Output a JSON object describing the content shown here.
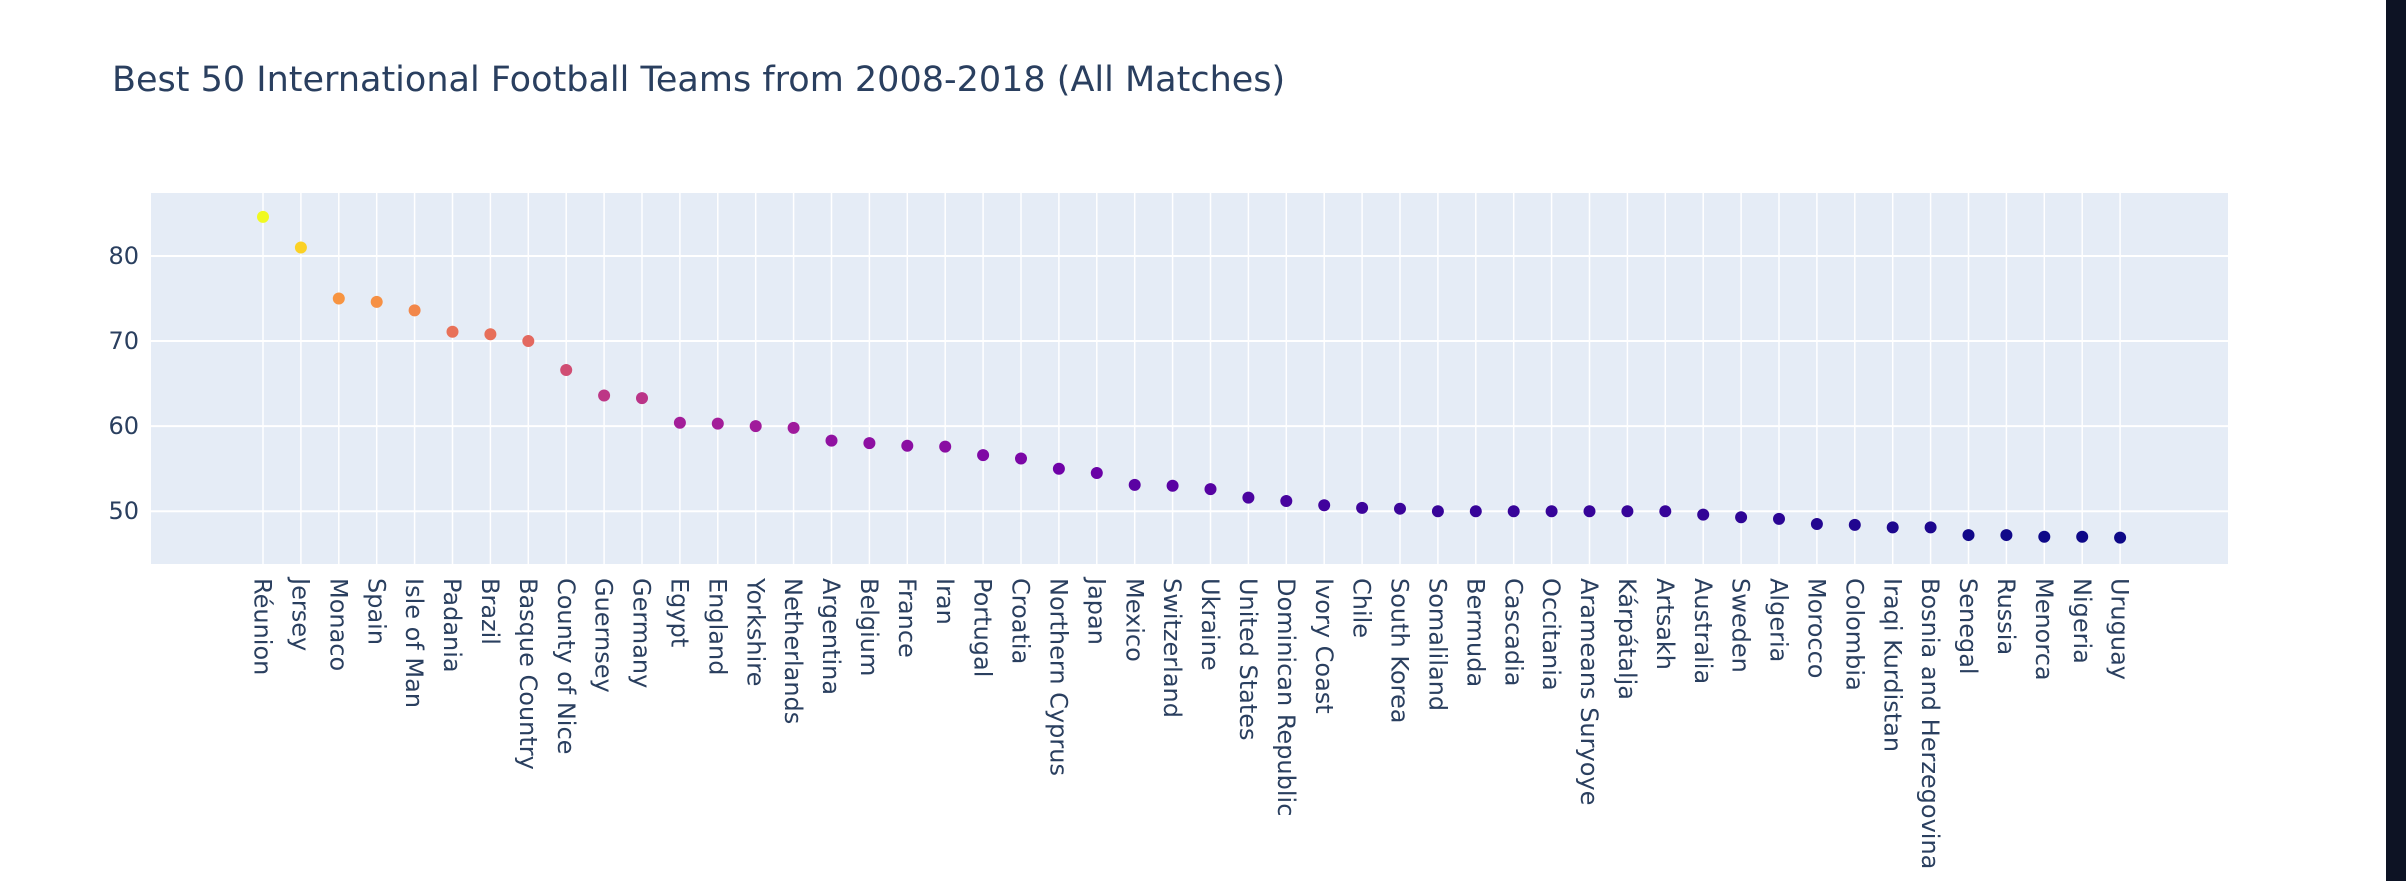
{
  "chart_data": {
    "type": "scatter",
    "title": "Best 50 International Football Teams from 2008-2018 (All Matches)",
    "xlabel": "",
    "ylabel": "",
    "ylim": [
      43.8,
      87.4
    ],
    "yticks": [
      50,
      60,
      70,
      80
    ],
    "grid": true,
    "legend": "none",
    "colorscale": "plasma",
    "background": "#e5ecf6",
    "categories": [
      "Réunion",
      "Jersey",
      "Monaco",
      "Spain",
      "Isle of Man",
      "Padania",
      "Brazil",
      "Basque Country",
      "County of Nice",
      "Guernsey",
      "Germany",
      "Egypt",
      "England",
      "Yorkshire",
      "Netherlands",
      "Argentina",
      "Belgium",
      "France",
      "Iran",
      "Portugal",
      "Croatia",
      "Northern Cyprus",
      "Japan",
      "Mexico",
      "Switzerland",
      "Ukraine",
      "United States",
      "Dominican Republic",
      "Ivory Coast",
      "Chile",
      "South Korea",
      "Somaliland",
      "Bermuda",
      "Cascadia",
      "Occitania",
      "Arameans Suryoye",
      "Kárpátalja",
      "Artsakh",
      "Australia",
      "Sweden",
      "Algeria",
      "Morocco",
      "Colombia",
      "Iraqi Kurdistan",
      "Bosnia and Herzegovina",
      "Senegal",
      "Russia",
      "Menorca",
      "Nigeria",
      "Uruguay"
    ],
    "values": [
      84.6,
      81.0,
      75.0,
      74.6,
      73.6,
      71.1,
      70.8,
      70.0,
      66.6,
      63.6,
      63.3,
      60.4,
      60.3,
      60.0,
      59.8,
      58.3,
      58.0,
      57.7,
      57.6,
      56.6,
      56.2,
      55.0,
      54.5,
      53.1,
      53.0,
      52.6,
      51.6,
      51.2,
      50.7,
      50.4,
      50.3,
      50.0,
      50.0,
      50.0,
      50.0,
      50.0,
      50.0,
      50.0,
      49.6,
      49.3,
      49.1,
      48.5,
      48.4,
      48.1,
      48.1,
      47.2,
      47.2,
      47.0,
      47.0,
      46.9
    ]
  }
}
